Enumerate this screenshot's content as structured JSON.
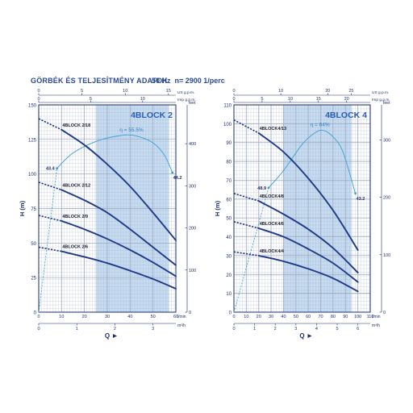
{
  "header": {
    "title": "GÖRBÉK ÉS TELJESÍTMÉNY ADATOK",
    "freq": "50 Hz  n= 2900 1/perc"
  },
  "colors": {
    "title": "#2b4a9a",
    "curve": "#1f3a86",
    "eff": "#3a9fd6",
    "band": "#c6dcf2",
    "grid": "#9aa7bd",
    "frame": "#1f2f6e",
    "text": "#1f2f6e"
  },
  "chart_data": [
    {
      "type": "line",
      "title": "4BLOCK 2",
      "ylabel": "H (m)",
      "xlabel": "Q",
      "xlim": [
        0,
        60
      ],
      "ylim": [
        0,
        150
      ],
      "grid": true,
      "x_ticks": [
        0,
        10,
        20,
        30,
        40,
        50,
        60
      ],
      "x_unit": "l/min",
      "y_ticks": [
        0,
        25,
        50,
        75,
        100,
        125,
        150
      ],
      "top_axis": {
        "unit": "US g.p.m.",
        "ticks": [
          0,
          5,
          10,
          15
        ],
        "factor": 3.785
      },
      "top_axis2": {
        "unit": "Imp g.p.m.",
        "ticks": [
          0,
          5,
          10
        ],
        "factor": 4.546
      },
      "bottom_axis2": {
        "unit": "m³/h",
        "ticks": [
          0,
          1,
          2,
          3
        ],
        "factor": 16.667
      },
      "right_axis": {
        "unit": "feet",
        "ticks": [
          0,
          100,
          200,
          300,
          400
        ],
        "factor": 0.3048
      },
      "band": [
        25,
        57
      ],
      "efficiency": {
        "label": "η = 55.5%",
        "x": [
          8,
          15,
          25,
          35,
          42,
          50,
          55,
          58.5
        ],
        "y": [
          104.1,
          115.2,
          123.5,
          127.6,
          127.8,
          122.5,
          113.6,
          101
        ],
        "start_label": "43.4",
        "end_label": "44.2",
        "guide_x": [
          0,
          8
        ]
      },
      "series": [
        {
          "name": "4BLOCK 2/18",
          "x": [
            0,
            10,
            20,
            30,
            40,
            50,
            60
          ],
          "y": [
            140,
            132,
            121,
            107,
            91,
            72,
            52
          ]
        },
        {
          "name": "4BLOCK 2/12",
          "x": [
            0,
            10,
            20,
            30,
            40,
            50,
            60
          ],
          "y": [
            94,
            88.5,
            81,
            72,
            60,
            47,
            34
          ]
        },
        {
          "name": "4BLOCK 2/9",
          "x": [
            0,
            10,
            20,
            30,
            40,
            50,
            60
          ],
          "y": [
            70,
            66,
            60,
            53,
            45,
            36,
            26
          ]
        },
        {
          "name": "4BLOCK 2/6",
          "x": [
            0,
            10,
            20,
            30,
            40,
            50,
            60
          ],
          "y": [
            47,
            44,
            40,
            35.5,
            30,
            24,
            17
          ]
        }
      ]
    },
    {
      "type": "line",
      "title": "4BLOCK 4",
      "ylabel": "H (m)",
      "xlabel": "Q",
      "xlim": [
        0,
        110
      ],
      "ylim": [
        0,
        110
      ],
      "grid": true,
      "x_ticks": [
        0,
        10,
        20,
        30,
        40,
        50,
        60,
        70,
        80,
        90,
        100,
        110
      ],
      "x_unit": "l/min",
      "y_ticks": [
        0,
        10,
        20,
        30,
        40,
        50,
        60,
        70,
        80,
        90,
        100,
        110
      ],
      "top_axis": {
        "unit": "US g.p.m.",
        "ticks": [
          0,
          10,
          20,
          25
        ],
        "factor": 3.785
      },
      "top_axis2": {
        "unit": "Imp g.p.m.",
        "ticks": [
          0,
          5,
          10,
          15,
          20
        ],
        "factor": 4.546
      },
      "bottom_axis2": {
        "unit": "m³/h",
        "ticks": [
          0,
          1,
          2,
          3,
          4,
          5,
          6
        ],
        "factor": 16.667
      },
      "right_axis": {
        "unit": "feet",
        "ticks": [
          0,
          100,
          200,
          300
        ],
        "factor": 0.3048
      },
      "band": [
        40,
        95
      ],
      "efficiency": {
        "label": "η = 64%",
        "x": [
          28,
          40,
          55,
          65,
          72,
          80,
          88,
          98
        ],
        "y": [
          66,
          75.1,
          89,
          95,
          96.5,
          93,
          85,
          63
        ],
        "start_label": "48.9",
        "end_label": "43.2",
        "guide_x": [
          0,
          28
        ]
      },
      "series": [
        {
          "name": "4BLOCK4/13",
          "x": [
            0,
            20,
            40,
            60,
            80,
            100
          ],
          "y": [
            102,
            95,
            85,
            71,
            54,
            33
          ]
        },
        {
          "name": "4BLOCK4/8",
          "x": [
            0,
            20,
            40,
            60,
            80,
            100
          ],
          "y": [
            63,
            59,
            52,
            44,
            34,
            21
          ]
        },
        {
          "name": "4BLOCK4/6",
          "x": [
            0,
            20,
            40,
            60,
            80,
            100
          ],
          "y": [
            48,
            44.5,
            40,
            33.5,
            26,
            16
          ]
        },
        {
          "name": "4BLOCK4/4",
          "x": [
            0,
            20,
            40,
            60,
            80,
            100
          ],
          "y": [
            32,
            30,
            27,
            23,
            18,
            11
          ]
        }
      ]
    }
  ]
}
